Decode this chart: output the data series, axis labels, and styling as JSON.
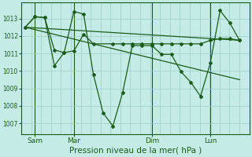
{
  "bg_color": "#c5ebe6",
  "grid_color": "#9eccc5",
  "line_color": "#1a5c1a",
  "marker_color": "#1a5c1a",
  "xlabel": "Pression niveau de la mer( hPa )",
  "xlabel_fontsize": 7.5,
  "yticks": [
    1007,
    1008,
    1009,
    1010,
    1011,
    1012,
    1013
  ],
  "ylim": [
    1006.4,
    1013.9
  ],
  "xlim": [
    -0.2,
    11.5
  ],
  "xtick_labels": [
    "Sam",
    "Mar",
    "Dim",
    "Lun"
  ],
  "xtick_positions": [
    0.5,
    2.5,
    6.5,
    9.5
  ],
  "vline_positions": [
    0.5,
    2.5,
    6.5,
    9.5
  ],
  "series": [
    {
      "x": [
        0,
        0.5,
        1.0,
        1.5,
        2.0,
        2.5,
        3.0,
        3.5,
        4.0,
        4.5,
        5.0,
        5.5,
        6.0,
        6.5,
        7.0,
        7.5,
        8.0,
        8.5,
        9.0,
        9.5,
        10.0,
        10.5,
        11.0
      ],
      "y": [
        1012.5,
        1013.1,
        1013.05,
        1010.3,
        1011.05,
        1013.4,
        1013.25,
        1009.8,
        1007.6,
        1006.85,
        1008.75,
        1011.45,
        1011.45,
        1011.45,
        1010.95,
        1010.95,
        1009.95,
        1009.35,
        1008.55,
        1010.45,
        1013.45,
        1012.75,
        1011.75
      ],
      "lw": 0.9,
      "marker": "D",
      "markersize": 2.0
    },
    {
      "x": [
        0,
        0.5,
        1.0,
        1.5,
        2.0,
        2.5,
        3.0,
        3.5,
        4.5,
        5.0,
        5.5,
        6.0,
        6.5,
        7.0,
        7.5,
        8.0,
        8.5,
        9.0,
        9.5,
        10.0,
        10.5,
        11.0
      ],
      "y": [
        1012.5,
        1013.1,
        1013.05,
        1011.2,
        1011.05,
        1011.15,
        1012.1,
        1011.55,
        1011.55,
        1011.55,
        1011.55,
        1011.55,
        1011.55,
        1011.55,
        1011.55,
        1011.55,
        1011.55,
        1011.55,
        1011.75,
        1011.85,
        1011.85,
        1011.75
      ],
      "lw": 0.9,
      "marker": "D",
      "markersize": 2.0
    },
    {
      "x": [
        0,
        11.0
      ],
      "y": [
        1012.5,
        1011.75
      ],
      "lw": 0.9,
      "marker": null,
      "markersize": 0
    },
    {
      "x": [
        0,
        11.0
      ],
      "y": [
        1012.5,
        1009.5
      ],
      "lw": 0.9,
      "marker": null,
      "markersize": 0
    }
  ],
  "num_xgrid": 24,
  "ytick_fontsize": 5.5,
  "xtick_fontsize": 6.5
}
